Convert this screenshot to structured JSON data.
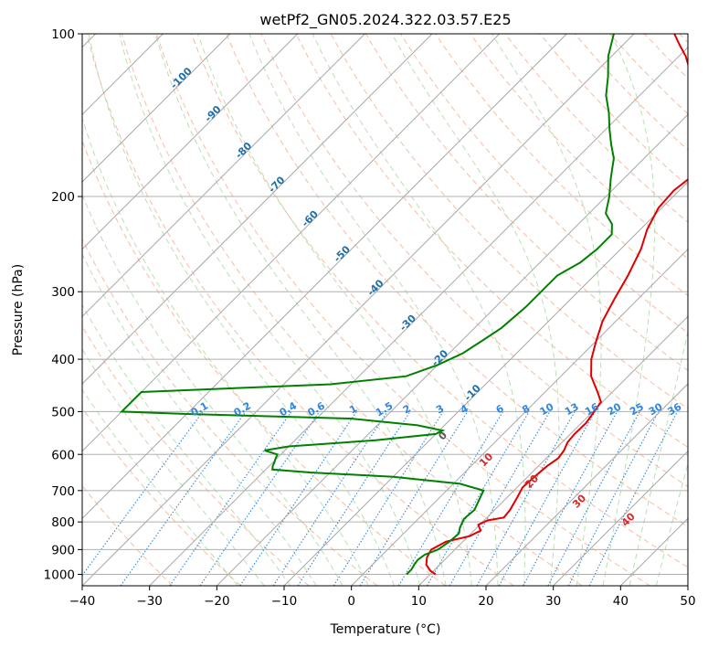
{
  "chart_data": {
    "type": "line",
    "subtype": "skew-T log-P diagram",
    "title": "wetPf2_GN05.2024.322.03.57.E25",
    "xlabel": "Temperature (°C)",
    "ylabel": "Pressure (hPa)",
    "xlim": [
      -40,
      50
    ],
    "ylim": [
      1050,
      100
    ],
    "y_scale": "log",
    "x_ticks": [
      "−40",
      "−30",
      "−20",
      "−10",
      "0",
      "10",
      "20",
      "30",
      "40",
      "50"
    ],
    "y_ticks": [
      "100",
      "200",
      "300",
      "400",
      "500",
      "600",
      "700",
      "800",
      "900",
      "1000"
    ],
    "grid": "isobars (horizontal) and skewed isotherms (diagonal)",
    "background_lines": {
      "dry_adiabats_color": "#f4a582",
      "moist_adiabats_color": "#a6d8a0",
      "mixing_ratio_color": "#2e86de",
      "isotherm_label_color": "#1f6fa8",
      "wet_bulb_label_color": "#d62728",
      "isotherm_labels": [
        "-100",
        "-90",
        "-80",
        "-70",
        "-60",
        "-50",
        "-40",
        "-30",
        "-20",
        "-10"
      ],
      "mixing_ratio_labels": [
        "0.1",
        "0.2",
        "0.4",
        "0.6",
        "1",
        "1.5",
        "2",
        "3",
        "4",
        "6",
        "8",
        "10",
        "13",
        "16",
        "20",
        "25",
        "30",
        "36"
      ],
      "wet_bulb_labels": [
        "0",
        "10",
        "20",
        "30",
        "40"
      ]
    },
    "series": [
      {
        "color": "#e00000",
        "points": [
          [
            1000,
            10.8
          ],
          [
            985,
            9.5
          ],
          [
            960,
            8.0
          ],
          [
            930,
            7.0
          ],
          [
            900,
            6.5
          ],
          [
            870,
            7.5
          ],
          [
            850,
            10.2
          ],
          [
            830,
            11.0
          ],
          [
            810,
            9.8
          ],
          [
            795,
            10.5
          ],
          [
            785,
            12.5
          ],
          [
            760,
            12.3
          ],
          [
            720,
            11.5
          ],
          [
            690,
            10.8
          ],
          [
            660,
            11.0
          ],
          [
            630,
            11.3
          ],
          [
            610,
            11.8
          ],
          [
            590,
            11.5
          ],
          [
            570,
            10.8
          ],
          [
            550,
            10.6
          ],
          [
            525,
            10.7
          ],
          [
            500,
            10.2
          ],
          [
            480,
            9.8
          ],
          [
            460,
            7.8
          ],
          [
            430,
            4.5
          ],
          [
            400,
            2.0
          ],
          [
            370,
            0.0
          ],
          [
            340,
            -2.0
          ],
          [
            310,
            -3.5
          ],
          [
            280,
            -5.0
          ],
          [
            250,
            -7.0
          ],
          [
            230,
            -9.0
          ],
          [
            210,
            -10.5
          ],
          [
            195,
            -10.8
          ],
          [
            185,
            -10.3
          ],
          [
            170,
            -9.8
          ],
          [
            160,
            -10.5
          ],
          [
            150,
            -12.5
          ],
          [
            140,
            -16.0
          ],
          [
            130,
            -20.0
          ],
          [
            125,
            -21.0
          ],
          [
            120,
            -24.0
          ],
          [
            115,
            -27.0
          ],
          [
            110,
            -29.0
          ],
          [
            105,
            -31.5
          ],
          [
            100,
            -34.0
          ]
        ]
      },
      {
        "color": "#008000",
        "points": [
          [
            1000,
            6.5
          ],
          [
            980,
            6.5
          ],
          [
            960,
            6.2
          ],
          [
            940,
            6.0
          ],
          [
            920,
            6.3
          ],
          [
            900,
            7.5
          ],
          [
            870,
            8.0
          ],
          [
            840,
            8.2
          ],
          [
            820,
            7.5
          ],
          [
            790,
            6.8
          ],
          [
            760,
            7.0
          ],
          [
            720,
            6.0
          ],
          [
            700,
            5.5
          ],
          [
            680,
            1.0
          ],
          [
            660,
            -10.0
          ],
          [
            648,
            -23.0
          ],
          [
            640,
            -29.0
          ],
          [
            630,
            -29.5
          ],
          [
            620,
            -29.8
          ],
          [
            610,
            -30.2
          ],
          [
            600,
            -30.5
          ],
          [
            590,
            -33.0
          ],
          [
            580,
            -30.0
          ],
          [
            565,
            -18.0
          ],
          [
            550,
            -10.0
          ],
          [
            542,
            -9.5
          ],
          [
            530,
            -14.0
          ],
          [
            515,
            -25.0
          ],
          [
            505,
            -50.0
          ],
          [
            500,
            -60.0
          ],
          [
            460,
            -60.0
          ],
          [
            445,
            -33.0
          ],
          [
            430,
            -23.0
          ],
          [
            410,
            -20.0
          ],
          [
            390,
            -18.0
          ],
          [
            370,
            -17.0
          ],
          [
            350,
            -16.0
          ],
          [
            320,
            -15.5
          ],
          [
            300,
            -15.5
          ],
          [
            280,
            -15.5
          ],
          [
            265,
            -14.0
          ],
          [
            250,
            -13.5
          ],
          [
            235,
            -13.5
          ],
          [
            225,
            -15.0
          ],
          [
            215,
            -17.5
          ],
          [
            200,
            -19.5
          ],
          [
            185,
            -22.0
          ],
          [
            170,
            -24.5
          ],
          [
            160,
            -27.0
          ],
          [
            150,
            -29.5
          ],
          [
            140,
            -32.0
          ],
          [
            130,
            -35.0
          ],
          [
            120,
            -37.5
          ],
          [
            110,
            -40.5
          ],
          [
            100,
            -43.0
          ]
        ]
      }
    ]
  }
}
